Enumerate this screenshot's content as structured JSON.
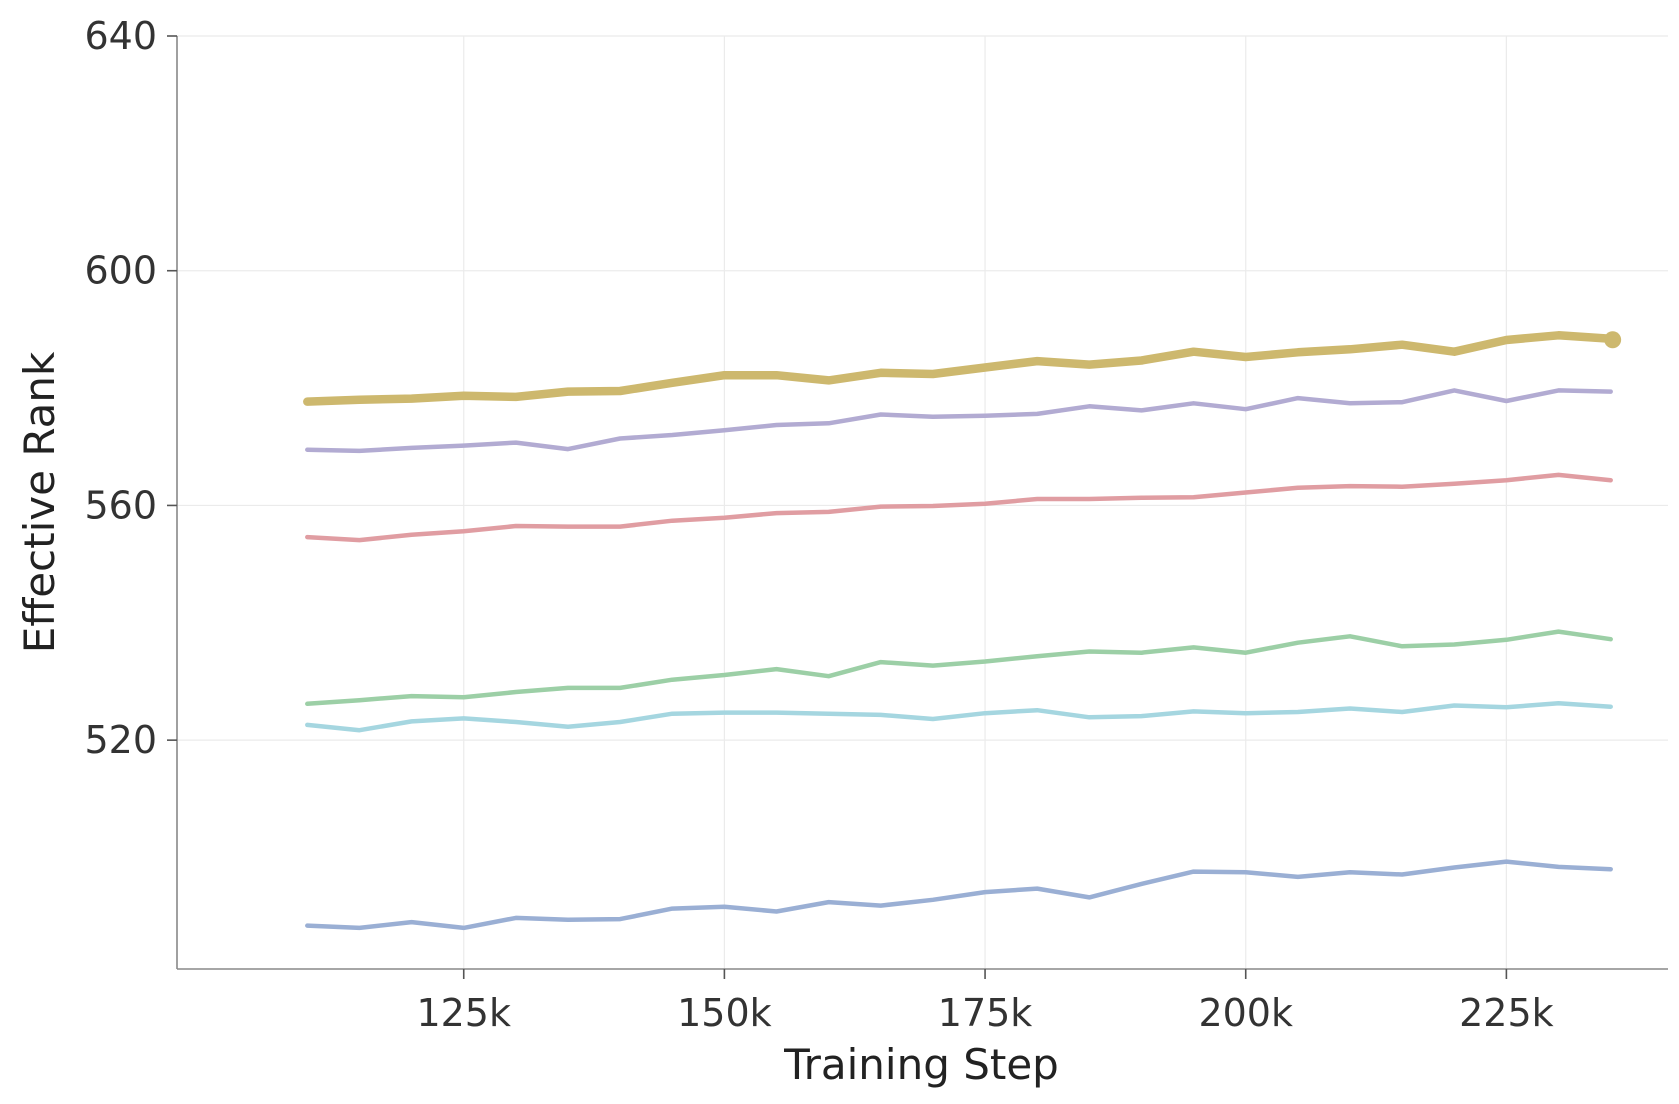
{
  "chart_data": {
    "type": "line",
    "xlabel": "Training Step",
    "ylabel": "Effective Rank",
    "xlim": [
      97500,
      240500
    ],
    "ylim": [
      481,
      640
    ],
    "x_ticks": [
      125000,
      150000,
      175000,
      200000,
      225000
    ],
    "x_tick_labels": [
      "125k",
      "150k",
      "175k",
      "200k",
      "225k"
    ],
    "y_ticks": [
      520,
      560,
      600,
      640
    ],
    "y_tick_labels": [
      "520",
      "560",
      "600",
      "640"
    ],
    "grid": true,
    "x": [
      110000,
      115000,
      120000,
      125000,
      130000,
      135000,
      140000,
      145000,
      150000,
      155000,
      160000,
      165000,
      170000,
      175000,
      180000,
      185000,
      190000,
      195000,
      200000,
      205000,
      210000,
      215000,
      220000,
      225000,
      230000,
      235000
    ],
    "series": [
      {
        "color": "#cdb86e",
        "highlight": true,
        "end_marker": true,
        "values": [
          577.7,
          578.0,
          578.2,
          578.7,
          578.5,
          579.4,
          579.5,
          580.9,
          582.2,
          582.2,
          581.3,
          582.6,
          582.4,
          583.5,
          584.6,
          584.0,
          584.7,
          586.2,
          585.3,
          586.1,
          586.6,
          587.4,
          586.2,
          588.2,
          589.0,
          588.4
        ]
      },
      {
        "color": "#b2abd2",
        "values": [
          569.5,
          569.3,
          569.8,
          570.2,
          570.7,
          569.6,
          571.4,
          572.0,
          572.8,
          573.7,
          574.0,
          575.5,
          575.1,
          575.3,
          575.6,
          576.9,
          576.2,
          577.4,
          576.4,
          578.3,
          577.4,
          577.6,
          579.6,
          577.8,
          579.6,
          579.4
        ]
      },
      {
        "color": "#e09da2",
        "values": [
          554.6,
          554.1,
          555.0,
          555.6,
          556.5,
          556.4,
          556.4,
          557.4,
          557.9,
          558.7,
          558.9,
          559.8,
          559.9,
          560.3,
          561.1,
          561.1,
          561.3,
          561.4,
          562.2,
          563.0,
          563.3,
          563.2,
          563.7,
          564.3,
          565.2,
          564.3
        ]
      },
      {
        "color": "#9ccfa6",
        "values": [
          526.2,
          526.8,
          527.5,
          527.3,
          528.2,
          528.9,
          528.9,
          530.3,
          531.1,
          532.1,
          530.9,
          533.3,
          532.7,
          533.4,
          534.3,
          535.1,
          534.9,
          535.8,
          534.9,
          536.6,
          537.7,
          536.0,
          536.3,
          537.1,
          538.5,
          537.2
        ]
      },
      {
        "color": "#a5d6e0",
        "values": [
          522.6,
          521.7,
          523.2,
          523.7,
          523.1,
          522.3,
          523.1,
          524.5,
          524.7,
          524.7,
          524.5,
          524.3,
          523.6,
          524.6,
          525.1,
          523.9,
          524.1,
          524.9,
          524.6,
          524.8,
          525.4,
          524.8,
          525.9,
          525.6,
          526.3,
          525.7
        ]
      },
      {
        "color": "#9aafd4",
        "values": [
          488.4,
          488.0,
          489.0,
          488.0,
          489.7,
          489.4,
          489.5,
          491.3,
          491.6,
          490.8,
          492.4,
          491.8,
          492.8,
          494.1,
          494.7,
          493.2,
          495.5,
          497.6,
          497.5,
          496.7,
          497.5,
          497.1,
          498.3,
          499.3,
          498.4,
          498.0
        ]
      }
    ]
  }
}
